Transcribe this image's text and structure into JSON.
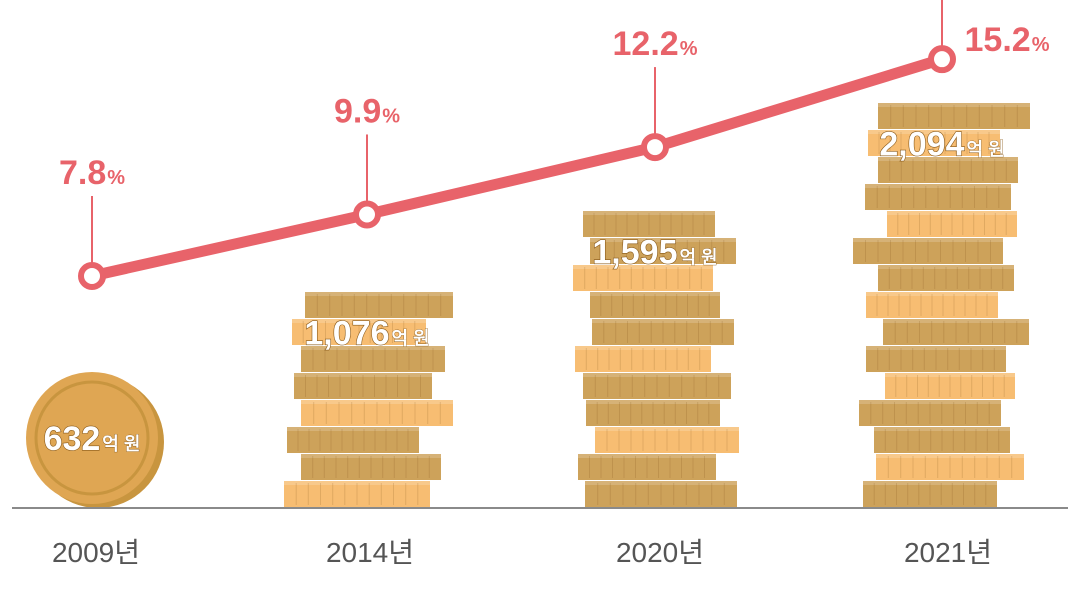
{
  "chart_data": {
    "type": "bar",
    "categories": [
      "2009년",
      "2014년",
      "2020년",
      "2021년"
    ],
    "series": [
      {
        "values": [
          632,
          1076,
          1595,
          2094
        ],
        "value_labels": [
          "632",
          "1,076",
          "1,595",
          "2,094"
        ],
        "unit": "억 원"
      },
      {
        "type": "line",
        "values": [
          7.8,
          9.9,
          12.2,
          15.2
        ],
        "value_labels": [
          "7.8",
          "9.9",
          "12.2",
          "15.2"
        ],
        "unit": "%"
      }
    ],
    "colors": {
      "line": "#e8636a",
      "coin_dark": "#cda25a",
      "coin_light": "#f7bd72",
      "coin_face": "#dfa653",
      "axis": "#8a8a8a"
    }
  }
}
